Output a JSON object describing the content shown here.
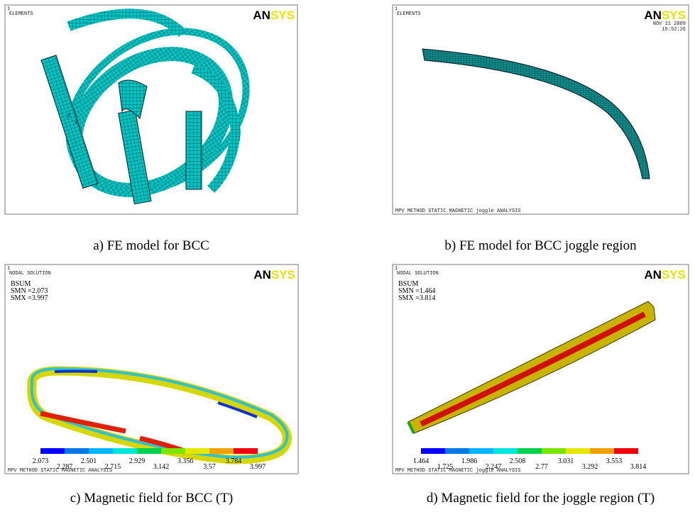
{
  "panels": [
    {
      "caption": "a) FE model for BCC",
      "window_number": "1",
      "header": "ELEMENTS",
      "logo": [
        "AN",
        "SYS"
      ],
      "triad": [
        "Z",
        "X"
      ]
    },
    {
      "caption": "b) FE model for BCC joggle region",
      "window_number": "1",
      "header": "ELEMENTS",
      "logo": [
        "AN",
        "SYS"
      ],
      "date": [
        "NOV 11 2009",
        "15:52:26"
      ],
      "footer": "MPV METHOD STATIC MAGNETIC joggle ANALYSIS"
    },
    {
      "caption": "c) Magnetic field for BCC (T)",
      "window_number": "1",
      "header": "NODAL SOLUTION",
      "logo": [
        "AN",
        "SYS"
      ],
      "stats": [
        "BSUM",
        "SMN =2.073",
        "SMX =3.997"
      ],
      "scale": [
        "2.073",
        "2.287",
        "2.501",
        "2.715",
        "2.929",
        "3.142",
        "3.356",
        "3.57",
        "3.784",
        "3.997"
      ],
      "footer": "MPV METHOD STATIC MAGNETIC ANALYSIS"
    },
    {
      "caption": "d) Magnetic field for the joggle region (T)",
      "window_number": "1",
      "header": "NODAL SOLUTION",
      "logo": [
        "AN",
        "SYS"
      ],
      "stats": [
        "BSUM",
        "SMN =1.464",
        "SMX =3.814"
      ],
      "scale": [
        "1.464",
        "1.725",
        "1.986",
        "2.247",
        "2.508",
        "2.77",
        "3.031",
        "3.292",
        "3.553",
        "3.814"
      ],
      "footer": "MPV METHOD STATIC MAGNETIC joggle ANALYSIS"
    }
  ]
}
